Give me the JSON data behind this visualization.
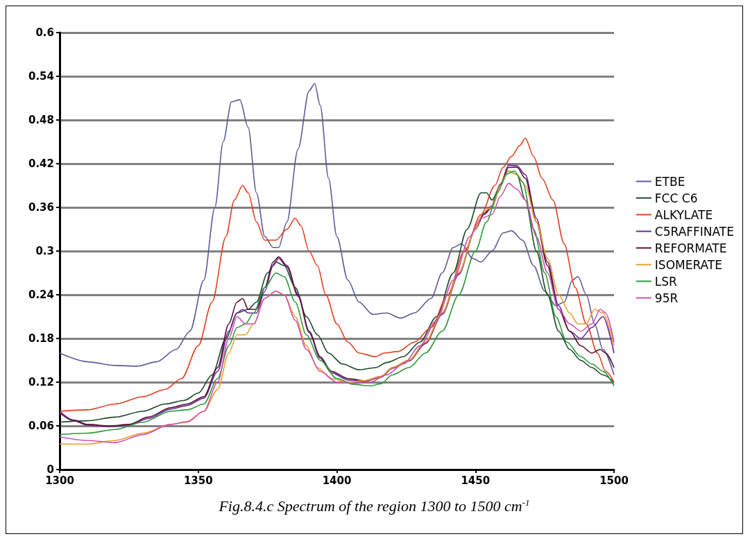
{
  "chart_data": {
    "type": "line",
    "annotations": [
      "Fig.8.4.c   Spectrum of the region 1300 to 1500 cm$^{-1}$"
    ],
    "xlim": [
      1300,
      1500
    ],
    "xticks": [
      1300,
      1350,
      1400,
      1450,
      1500
    ],
    "ylim": [
      0,
      0.6
    ],
    "yticks": [
      0,
      0.06,
      0.12,
      0.18,
      0.24,
      0.3,
      0.36,
      0.42,
      0.48,
      0.54,
      0.6
    ],
    "grid": "y",
    "legend": "right",
    "marker": "none",
    "line_style": "solid",
    "series": [
      {
        "name": "ETBE",
        "color": "#5a5a9a",
        "x": [
          1300,
          1310,
          1320,
          1328,
          1335,
          1342,
          1347,
          1352,
          1356,
          1359,
          1362,
          1365,
          1368,
          1371,
          1374,
          1377,
          1379,
          1382,
          1386,
          1390,
          1392,
          1394,
          1397,
          1400,
          1404,
          1408,
          1413,
          1418,
          1423,
          1428,
          1434,
          1438,
          1442,
          1445,
          1449,
          1452,
          1456,
          1460,
          1463,
          1467,
          1471,
          1475,
          1479,
          1482,
          1485,
          1487,
          1490,
          1493,
          1496,
          1500
        ],
        "values": [
          0.16,
          0.148,
          0.143,
          0.142,
          0.148,
          0.165,
          0.19,
          0.26,
          0.36,
          0.45,
          0.505,
          0.508,
          0.47,
          0.38,
          0.32,
          0.305,
          0.305,
          0.34,
          0.44,
          0.52,
          0.53,
          0.5,
          0.4,
          0.32,
          0.26,
          0.23,
          0.213,
          0.215,
          0.208,
          0.215,
          0.235,
          0.27,
          0.305,
          0.31,
          0.29,
          0.285,
          0.3,
          0.325,
          0.328,
          0.315,
          0.28,
          0.245,
          0.225,
          0.23,
          0.26,
          0.265,
          0.24,
          0.2,
          0.165,
          0.13
        ]
      },
      {
        "name": "FCC C6",
        "color": "#1a4a2a",
        "x": [
          1300,
          1310,
          1320,
          1330,
          1338,
          1345,
          1350,
          1355,
          1360,
          1364,
          1368,
          1371,
          1375,
          1378,
          1381,
          1385,
          1389,
          1393,
          1397,
          1402,
          1408,
          1414,
          1418,
          1424,
          1430,
          1436,
          1442,
          1447,
          1452,
          1454,
          1456,
          1459,
          1462,
          1465,
          1468,
          1472,
          1476,
          1480,
          1484,
          1488,
          1492,
          1496,
          1500
        ],
        "values": [
          0.065,
          0.067,
          0.072,
          0.08,
          0.09,
          0.095,
          0.105,
          0.13,
          0.18,
          0.215,
          0.22,
          0.23,
          0.27,
          0.285,
          0.28,
          0.25,
          0.21,
          0.185,
          0.16,
          0.145,
          0.137,
          0.14,
          0.147,
          0.155,
          0.175,
          0.21,
          0.27,
          0.33,
          0.38,
          0.38,
          0.37,
          0.39,
          0.41,
          0.405,
          0.37,
          0.3,
          0.24,
          0.19,
          0.165,
          0.15,
          0.14,
          0.13,
          0.12
        ]
      },
      {
        "name": "ALKYLATE",
        "color": "#e04020",
        "x": [
          1300,
          1310,
          1320,
          1330,
          1338,
          1344,
          1350,
          1355,
          1360,
          1363,
          1366,
          1368,
          1371,
          1374,
          1378,
          1382,
          1385,
          1387,
          1390,
          1393,
          1396,
          1400,
          1404,
          1408,
          1414,
          1417,
          1422,
          1428,
          1434,
          1440,
          1446,
          1452,
          1457,
          1460,
          1463,
          1466,
          1468,
          1471,
          1474,
          1478,
          1482,
          1486,
          1490,
          1494,
          1497,
          1500
        ],
        "values": [
          0.08,
          0.082,
          0.09,
          0.1,
          0.11,
          0.125,
          0.17,
          0.23,
          0.32,
          0.37,
          0.39,
          0.38,
          0.34,
          0.315,
          0.315,
          0.33,
          0.345,
          0.335,
          0.3,
          0.28,
          0.24,
          0.2,
          0.175,
          0.16,
          0.155,
          0.16,
          0.162,
          0.175,
          0.195,
          0.24,
          0.3,
          0.35,
          0.39,
          0.415,
          0.43,
          0.445,
          0.455,
          0.43,
          0.4,
          0.37,
          0.31,
          0.25,
          0.2,
          0.16,
          0.135,
          0.12
        ]
      },
      {
        "name": "C5RAFFINATE",
        "color": "#6a2a9a",
        "x": [
          1300,
          1305,
          1310,
          1318,
          1325,
          1332,
          1340,
          1346,
          1352,
          1357,
          1361,
          1364,
          1366,
          1368,
          1371,
          1374,
          1377,
          1379,
          1382,
          1386,
          1390,
          1394,
          1398,
          1404,
          1410,
          1416,
          1420,
          1426,
          1432,
          1438,
          1444,
          1450,
          1453,
          1456,
          1459,
          1462,
          1465,
          1468,
          1472,
          1476,
          1480,
          1484,
          1488,
          1492,
          1496,
          1500
        ],
        "values": [
          0.078,
          0.067,
          0.061,
          0.059,
          0.061,
          0.07,
          0.083,
          0.088,
          0.098,
          0.135,
          0.19,
          0.215,
          0.22,
          0.215,
          0.215,
          0.245,
          0.28,
          0.29,
          0.278,
          0.238,
          0.188,
          0.153,
          0.133,
          0.123,
          0.121,
          0.127,
          0.139,
          0.149,
          0.173,
          0.213,
          0.268,
          0.33,
          0.352,
          0.362,
          0.392,
          0.418,
          0.417,
          0.405,
          0.345,
          0.285,
          0.225,
          0.19,
          0.18,
          0.195,
          0.21,
          0.16
        ]
      },
      {
        "name": "REFORMATE",
        "color": "#5a1030",
        "x": [
          1300,
          1305,
          1310,
          1318,
          1325,
          1332,
          1340,
          1346,
          1352,
          1357,
          1361,
          1364,
          1366,
          1368,
          1371,
          1374,
          1377,
          1379,
          1382,
          1386,
          1390,
          1394,
          1398,
          1404,
          1410,
          1416,
          1420,
          1426,
          1432,
          1438,
          1444,
          1450,
          1453,
          1456,
          1459,
          1462,
          1465,
          1468,
          1472,
          1476,
          1480,
          1484,
          1488,
          1492,
          1495,
          1497,
          1500
        ],
        "values": [
          0.08,
          0.068,
          0.062,
          0.06,
          0.062,
          0.072,
          0.085,
          0.09,
          0.1,
          0.14,
          0.2,
          0.23,
          0.235,
          0.22,
          0.22,
          0.25,
          0.285,
          0.292,
          0.28,
          0.24,
          0.19,
          0.155,
          0.135,
          0.125,
          0.122,
          0.128,
          0.14,
          0.15,
          0.175,
          0.215,
          0.27,
          0.33,
          0.35,
          0.36,
          0.39,
          0.415,
          0.415,
          0.4,
          0.34,
          0.28,
          0.22,
          0.19,
          0.17,
          0.16,
          0.165,
          0.16,
          0.14
        ]
      },
      {
        "name": "ISOMERATE",
        "color": "#e8a030",
        "x": [
          1300,
          1310,
          1320,
          1330,
          1340,
          1346,
          1352,
          1357,
          1361,
          1364,
          1367,
          1370,
          1374,
          1378,
          1381,
          1385,
          1389,
          1393,
          1398,
          1404,
          1410,
          1416,
          1420,
          1426,
          1432,
          1438,
          1444,
          1450,
          1453,
          1456,
          1459,
          1462,
          1465,
          1468,
          1472,
          1476,
          1480,
          1484,
          1487,
          1490,
          1493,
          1496,
          1500
        ],
        "values": [
          0.035,
          0.035,
          0.04,
          0.05,
          0.062,
          0.065,
          0.08,
          0.11,
          0.16,
          0.185,
          0.185,
          0.2,
          0.235,
          0.245,
          0.24,
          0.21,
          0.17,
          0.14,
          0.125,
          0.12,
          0.122,
          0.128,
          0.14,
          0.15,
          0.175,
          0.215,
          0.27,
          0.33,
          0.355,
          0.36,
          0.39,
          0.41,
          0.405,
          0.39,
          0.34,
          0.29,
          0.24,
          0.215,
          0.2,
          0.2,
          0.22,
          0.215,
          0.17
        ]
      },
      {
        "name": "LSR",
        "color": "#2a9a3a",
        "x": [
          1300,
          1310,
          1320,
          1330,
          1340,
          1346,
          1352,
          1357,
          1361,
          1364,
          1367,
          1370,
          1374,
          1378,
          1381,
          1385,
          1389,
          1394,
          1400,
          1406,
          1412,
          1416,
          1420,
          1426,
          1432,
          1438,
          1444,
          1450,
          1454,
          1458,
          1461,
          1464,
          1467,
          1471,
          1475,
          1479,
          1483,
          1488,
          1492,
          1496,
          1500
        ],
        "values": [
          0.048,
          0.05,
          0.055,
          0.065,
          0.08,
          0.082,
          0.09,
          0.125,
          0.17,
          0.195,
          0.2,
          0.215,
          0.25,
          0.27,
          0.265,
          0.23,
          0.185,
          0.15,
          0.125,
          0.117,
          0.115,
          0.118,
          0.13,
          0.14,
          0.16,
          0.19,
          0.24,
          0.3,
          0.34,
          0.38,
          0.405,
          0.41,
          0.395,
          0.33,
          0.27,
          0.21,
          0.175,
          0.155,
          0.145,
          0.135,
          0.115
        ]
      },
      {
        "name": "95R",
        "color": "#d050b0",
        "x": [
          1300,
          1310,
          1320,
          1330,
          1340,
          1346,
          1352,
          1357,
          1361,
          1364,
          1367,
          1370,
          1374,
          1378,
          1381,
          1385,
          1389,
          1394,
          1400,
          1406,
          1412,
          1418,
          1424,
          1430,
          1436,
          1442,
          1448,
          1452,
          1456,
          1459,
          1462,
          1465,
          1468,
          1472,
          1476,
          1480,
          1484,
          1488,
          1492,
          1495,
          1497,
          1500
        ],
        "values": [
          0.045,
          0.04,
          0.037,
          0.048,
          0.062,
          0.066,
          0.08,
          0.12,
          0.18,
          0.21,
          0.2,
          0.2,
          0.235,
          0.245,
          0.24,
          0.205,
          0.165,
          0.135,
          0.12,
          0.118,
          0.12,
          0.13,
          0.145,
          0.17,
          0.205,
          0.26,
          0.32,
          0.345,
          0.35,
          0.375,
          0.393,
          0.385,
          0.37,
          0.32,
          0.27,
          0.22,
          0.2,
          0.19,
          0.2,
          0.22,
          0.215,
          0.175
        ]
      }
    ]
  }
}
